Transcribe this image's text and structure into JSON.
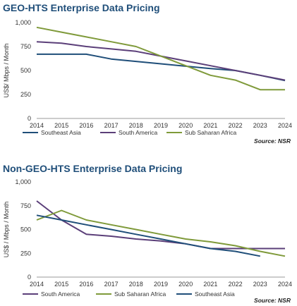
{
  "chart_data": [
    {
      "type": "line",
      "title": "GEO-HTS Enterprise Data Pricing",
      "ylabel": "US$/ Mbps / Month",
      "x": [
        2014,
        2015,
        2016,
        2017,
        2018,
        2019,
        2020,
        2021,
        2022,
        2023,
        2024
      ],
      "ylim": [
        0,
        1000
      ],
      "yticks": [
        "0",
        "250",
        "500",
        "750",
        "1,000"
      ],
      "grid": false,
      "legend": "bottom",
      "series": [
        {
          "name": "Southeast Asia",
          "color": "#1f4e79",
          "values": [
            670,
            670,
            670,
            620,
            595,
            570,
            545,
            520,
            500,
            450,
            395
          ]
        },
        {
          "name": "South America",
          "color": "#5b3f79",
          "values": [
            800,
            785,
            750,
            725,
            700,
            650,
            600,
            550,
            500,
            450,
            400
          ]
        },
        {
          "name": "Sub Saharan Africa",
          "color": "#7f9a3a",
          "values": [
            950,
            900,
            850,
            800,
            750,
            650,
            550,
            450,
            400,
            300,
            300
          ]
        }
      ],
      "source": "Source: NSR"
    },
    {
      "type": "line",
      "title": "Non-GEO-HTS Enterprise Data Pricing",
      "ylabel": "US$ / Mbps / Month",
      "x": [
        2014,
        2015,
        2016,
        2017,
        2018,
        2019,
        2020,
        2021,
        2022,
        2023,
        2024
      ],
      "ylim": [
        0,
        1000
      ],
      "yticks": [
        "0",
        "250",
        "500",
        "750",
        "1,000"
      ],
      "grid": false,
      "legend": "bottom",
      "series": [
        {
          "name": "South America",
          "color": "#5b3f79",
          "values": [
            800,
            600,
            450,
            430,
            400,
            380,
            350,
            300,
            300,
            300,
            300
          ]
        },
        {
          "name": "Sub Saharan Africa",
          "color": "#7f9a3a",
          "values": [
            600,
            700,
            600,
            550,
            500,
            450,
            400,
            370,
            330,
            270,
            220
          ]
        },
        {
          "name": "Southeast Asia",
          "color": "#1f4e79",
          "values": [
            650,
            600,
            550,
            500,
            450,
            400,
            350,
            300,
            270,
            220,
            null
          ]
        }
      ],
      "source": "Source: NSR"
    }
  ]
}
